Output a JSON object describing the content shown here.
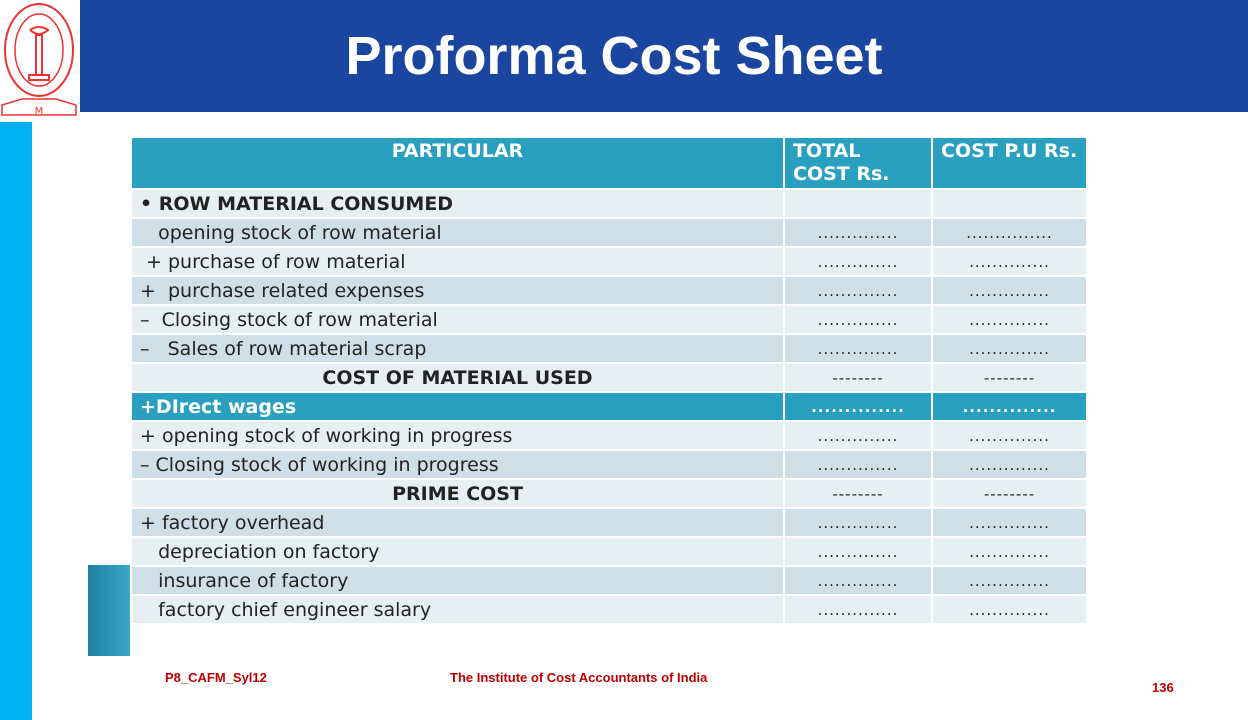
{
  "header": {
    "title": "Proforma Cost Sheet",
    "logo_text": "THE INSTITUTE OF COST ACCOUNTANTS OF INDIA"
  },
  "table": {
    "columns": [
      "PARTICULAR",
      "TOTAL COST Rs.",
      "COST P.U Rs."
    ],
    "rows": [
      {
        "label": "• ROW MATERIAL CONSUMED",
        "total": "",
        "unit": "",
        "style": "bold"
      },
      {
        "label": "   opening stock of row material",
        "total": "..............",
        "unit": "...............",
        "style": ""
      },
      {
        "label": " + purchase of row material",
        "total": "..............",
        "unit": "..............",
        "style": ""
      },
      {
        "label": "+  purchase related expenses",
        "total": "..............",
        "unit": "..............",
        "style": ""
      },
      {
        "label": "–  Closing stock of row material",
        "total": "..............",
        "unit": "..............",
        "style": ""
      },
      {
        "label": "–   Sales of row material scrap",
        "total": "..............",
        "unit": "..............",
        "style": ""
      },
      {
        "label": "COST OF MATERIAL USED",
        "total": "--------",
        "unit": "--------",
        "style": "center"
      },
      {
        "label": "+DIrect wages",
        "total": "..............",
        "unit": "..............",
        "style": "highlight"
      },
      {
        "label": "+ opening stock of working in progress",
        "total": "..............",
        "unit": "..............",
        "style": ""
      },
      {
        "label": "– Closing stock of working in progress",
        "total": "..............",
        "unit": "..............",
        "style": ""
      },
      {
        "label": "PRIME COST",
        "total": "--------",
        "unit": "--------",
        "style": "center"
      },
      {
        "label": "+ factory overhead",
        "total": "..............",
        "unit": "..............",
        "style": ""
      },
      {
        "label": "   depreciation on factory",
        "total": "..............",
        "unit": "..............",
        "style": ""
      },
      {
        "label": "   insurance of factory",
        "total": "..............",
        "unit": "..............",
        "style": ""
      },
      {
        "label": "   factory chief engineer salary",
        "total": "..............",
        "unit": "..............",
        "style": ""
      }
    ]
  },
  "footer": {
    "code": "P8_CAFM_Syl12",
    "institute": "The Institute of Cost Accountants of India",
    "page": "136"
  }
}
